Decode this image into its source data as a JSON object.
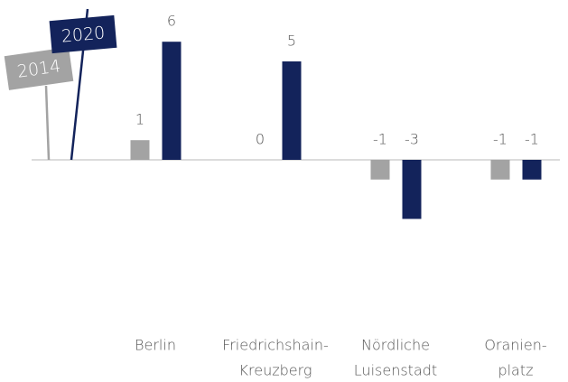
{
  "chart_data": {
    "type": "bar",
    "categories": [
      [
        "Berlin"
      ],
      [
        "Friedrichshain-",
        "Kreuzberg"
      ],
      [
        "Nördliche",
        "Luisenstadt"
      ],
      [
        "Oranien-",
        "platz"
      ]
    ],
    "series": [
      {
        "name": "2014",
        "color": "#a3a3a3",
        "values": [
          1,
          0,
          -1,
          -1
        ]
      },
      {
        "name": "2020",
        "color": "#13235b",
        "values": [
          6,
          5,
          -3,
          -1
        ]
      }
    ]
  }
}
